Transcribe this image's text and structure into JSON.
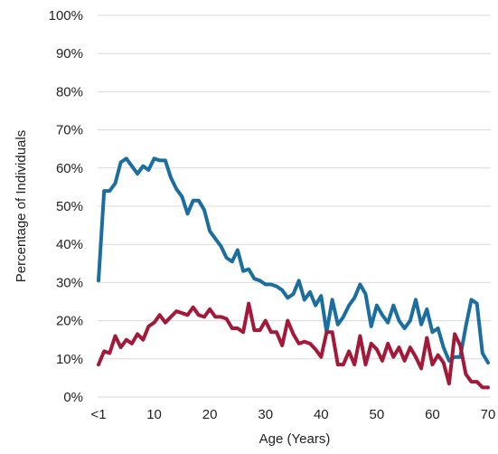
{
  "chart_data": {
    "type": "line",
    "title": "",
    "xlabel": "Age (Years)",
    "ylabel": "Percentage of Individuals",
    "xlim": [
      0,
      70
    ],
    "ylim": [
      0,
      100
    ],
    "y_ticks": [
      {
        "value": 0,
        "label": "0%"
      },
      {
        "value": 10,
        "label": "10%"
      },
      {
        "value": 20,
        "label": "20%"
      },
      {
        "value": 30,
        "label": "30%"
      },
      {
        "value": 40,
        "label": "40%"
      },
      {
        "value": 50,
        "label": "50%"
      },
      {
        "value": 60,
        "label": "60%"
      },
      {
        "value": 70,
        "label": "70%"
      },
      {
        "value": 80,
        "label": "80%"
      },
      {
        "value": 90,
        "label": "90%"
      },
      {
        "value": 100,
        "label": "100%"
      }
    ],
    "x_ticks": [
      {
        "value": 0,
        "label": "<1"
      },
      {
        "value": 10,
        "label": "10"
      },
      {
        "value": 20,
        "label": "20"
      },
      {
        "value": 30,
        "label": "30"
      },
      {
        "value": 40,
        "label": "40"
      },
      {
        "value": 50,
        "label": "50"
      },
      {
        "value": 60,
        "label": "60"
      },
      {
        "value": 70,
        "label": "70"
      }
    ],
    "grid": "horizontal",
    "legend": "none",
    "x": [
      0,
      1,
      2,
      3,
      4,
      5,
      6,
      7,
      8,
      9,
      10,
      11,
      12,
      13,
      14,
      15,
      16,
      17,
      18,
      19,
      20,
      21,
      22,
      23,
      24,
      25,
      26,
      27,
      28,
      29,
      30,
      31,
      32,
      33,
      34,
      35,
      36,
      37,
      38,
      39,
      40,
      41,
      42,
      43,
      44,
      45,
      46,
      47,
      48,
      49,
      50,
      51,
      52,
      53,
      54,
      55,
      56,
      57,
      58,
      59,
      60,
      61,
      62,
      63,
      64,
      65,
      66,
      67,
      68,
      69,
      70
    ],
    "series": [
      {
        "color": "#1b6e9e",
        "values": [
          30.5,
          54,
          54,
          56,
          61.5,
          62.5,
          60.5,
          58.5,
          60.5,
          59.5,
          62.5,
          62,
          62,
          57.5,
          54.5,
          52.5,
          48,
          51.5,
          51.5,
          49,
          43.5,
          41.5,
          39.5,
          36.5,
          35.5,
          38.5,
          33,
          33.5,
          31,
          30.5,
          29.5,
          29.5,
          29,
          28,
          26,
          27,
          30.5,
          25.5,
          27.5,
          24,
          26.5,
          17,
          25.5,
          19,
          21,
          24,
          26,
          29.5,
          27,
          18.5,
          24,
          21.5,
          19.5,
          24,
          20,
          18,
          20,
          25.5,
          19,
          23,
          17,
          18,
          13,
          9.5,
          10.5,
          10.5,
          18.5,
          25.5,
          24.5,
          11.5,
          9
        ]
      },
      {
        "color": "#a3193a",
        "values": [
          8.5,
          12,
          11.5,
          16,
          13,
          15,
          14,
          16.5,
          15,
          18.5,
          19.5,
          21.5,
          19.5,
          21,
          22.5,
          22,
          21.5,
          23.5,
          21.5,
          21,
          23,
          21,
          21,
          20.5,
          18,
          18,
          17,
          24.5,
          17.5,
          17.5,
          20,
          17,
          17,
          13.5,
          20,
          16.5,
          14,
          14.5,
          14,
          12.5,
          10.5,
          17,
          17,
          8.5,
          8.5,
          12,
          8.5,
          16,
          8.5,
          14,
          12.5,
          9.5,
          14,
          10.5,
          13,
          9.5,
          13,
          10.5,
          7.5,
          15.5,
          8.5,
          11,
          9,
          3.5,
          16.5,
          13.5,
          6,
          4,
          4,
          2.5,
          2.5
        ]
      }
    ]
  }
}
